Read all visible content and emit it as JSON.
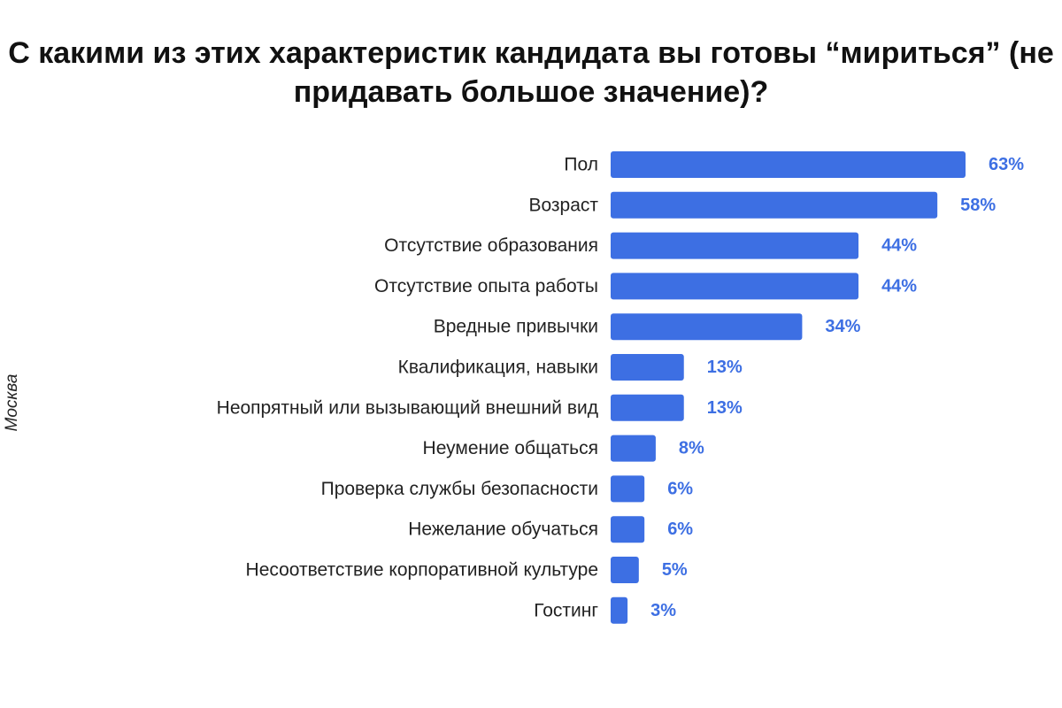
{
  "chart_data": {
    "type": "bar",
    "orientation": "horizontal",
    "title": "С какими из этих характеристик кандидата вы готовы “мириться” (не придавать большое значение)?",
    "ylabel": "Москва",
    "xlim": [
      0,
      63
    ],
    "grid": false,
    "legend": "none",
    "bar_color": "#3d6fe3",
    "label_color": "#3d6fe3",
    "categories": [
      "Пол",
      "Возраст",
      "Отсутствие образования",
      "Отсутствие опыта работы",
      "Вредные привычки",
      "Квалификация, навыки",
      "Неопрятный или вызывающий внешний вид",
      "Неумение общаться",
      "Проверка службы безопасности",
      "Нежелание обучаться",
      "Несоответствие корпоративной культуре",
      "Гостинг"
    ],
    "values": [
      63,
      58,
      44,
      44,
      34,
      13,
      13,
      8,
      6,
      6,
      5,
      3
    ],
    "value_labels": [
      "63%",
      "58%",
      "44%",
      "44%",
      "34%",
      "13%",
      "13%",
      "8%",
      "6%",
      "6%",
      "5%",
      "3%"
    ]
  }
}
